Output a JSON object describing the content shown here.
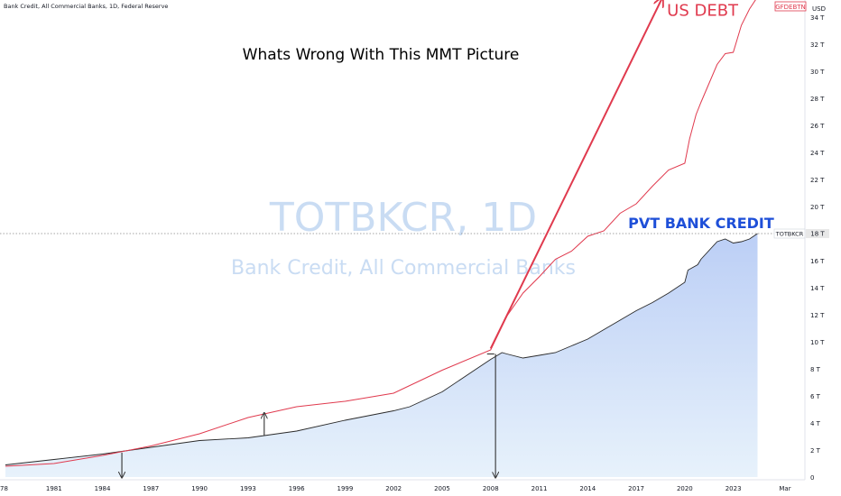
{
  "header": {
    "title": "Bank Credit, All Commercial Banks, 1D, Federal Reserve"
  },
  "currency_label": "USD",
  "chart_data": {
    "type": "area",
    "title": "Whats Wrong With This MMT Picture",
    "watermark": {
      "symbol": "TOTBKCR, 1D",
      "name": "Bank Credit, All Commercial Banks"
    },
    "ylim": [
      0,
      35
    ],
    "y_ticks": [
      0,
      2,
      4,
      6,
      8,
      10,
      12,
      14,
      16,
      18,
      20,
      22,
      24,
      26,
      28,
      30,
      32,
      34
    ],
    "y_tick_labels": [
      "0",
      "2 T",
      "4 T",
      "6 T",
      "8 T",
      "10 T",
      "12 T",
      "14 T",
      "16 T",
      "18 T",
      "20 T",
      "22 T",
      "24 T",
      "26 T",
      "28 T",
      "30 T",
      "32 T",
      "34 T"
    ],
    "x_ticks": [
      "78",
      "1981",
      "1984",
      "1987",
      "1990",
      "1993",
      "1996",
      "1999",
      "2002",
      "2005",
      "2008",
      "2011",
      "2014",
      "2017",
      "2020",
      "2023",
      "Mar"
    ],
    "x_tick_years": [
      1978,
      1981,
      1984,
      1987,
      1990,
      1993,
      1996,
      1999,
      2002,
      2005,
      2008,
      2011,
      2014,
      2017,
      2020,
      2023,
      2026.2
    ],
    "grid": false,
    "series": [
      {
        "name": "TOTBKCR",
        "label": "PVT BANK CREDIT",
        "color": "#1e4fd8",
        "last_value_label": "18 T",
        "x": [
          1978,
          1981,
          1984,
          1987,
          1990,
          1993,
          1996,
          1999,
          2002,
          2003,
          2005,
          2007,
          2008,
          2008.7,
          2009,
          2010,
          2011,
          2012,
          2013,
          2014,
          2015,
          2016,
          2017,
          2018,
          2019,
          2020,
          2020.2,
          2020.8,
          2021,
          2022,
          2022.5,
          2023,
          2023.5,
          2024,
          2024.5
        ],
        "y": [
          0.9,
          1.3,
          1.7,
          2.2,
          2.7,
          2.9,
          3.4,
          4.2,
          4.9,
          5.2,
          6.3,
          7.9,
          8.7,
          9.2,
          9.1,
          8.8,
          9.0,
          9.2,
          9.7,
          10.2,
          10.9,
          11.6,
          12.3,
          12.9,
          13.6,
          14.4,
          15.3,
          15.7,
          16.1,
          17.4,
          17.6,
          17.3,
          17.4,
          17.6,
          18.0
        ]
      },
      {
        "name": "GFDEBTN",
        "label": "US DEBT",
        "color": "#e03a4e",
        "x": [
          1978,
          1981,
          1984,
          1987,
          1990,
          1993,
          1996,
          1999,
          2002,
          2005,
          2008,
          2009,
          2010,
          2011,
          2012,
          2013,
          2014,
          2015,
          2016,
          2017,
          2018,
          2019,
          2020,
          2020.3,
          2020.7,
          2021,
          2022,
          2022.5,
          2023,
          2023.5,
          2024,
          2024.5
        ],
        "y": [
          0.8,
          1.0,
          1.6,
          2.3,
          3.2,
          4.4,
          5.2,
          5.6,
          6.2,
          7.9,
          9.4,
          11.9,
          13.6,
          14.8,
          16.1,
          16.7,
          17.8,
          18.2,
          19.5,
          20.2,
          21.5,
          22.7,
          23.2,
          25.0,
          26.8,
          27.7,
          30.5,
          31.3,
          31.4,
          33.4,
          34.6,
          35.5
        ]
      }
    ],
    "annotations": [
      {
        "type": "trend-arrow",
        "label": "US DEBT",
        "from": [
          2008,
          9.5
        ],
        "to": [
          2018.6,
          35.4
        ]
      },
      {
        "type": "down-arrow",
        "from": [
          1985.2,
          1.8
        ],
        "to": [
          1985.2,
          0
        ]
      },
      {
        "type": "up-arrow",
        "from": [
          1994,
          3.1
        ],
        "to": [
          1994,
          4.7
        ]
      },
      {
        "type": "down-arrow",
        "from": [
          2008.3,
          9.1
        ],
        "to": [
          2008.3,
          0
        ]
      }
    ],
    "badges": [
      {
        "series": "GFDEBTN",
        "label": "GFDEBTN",
        "color": "#e03a4e"
      },
      {
        "series": "TOTBKCR",
        "label": "TOTBKCR",
        "color": "#6b6b6b"
      }
    ]
  }
}
